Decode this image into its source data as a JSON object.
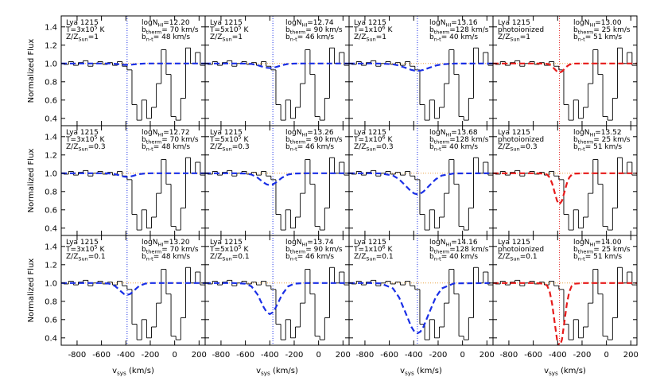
{
  "chart_data": {
    "type": "step",
    "x_label": [
      "v",
      "sys",
      " (km/s)"
    ],
    "y_label": "Normalized Flux",
    "xlim": [
      -930,
      250
    ],
    "xticks": [
      -800,
      -600,
      -400,
      -200,
      0,
      200
    ],
    "ylim": [
      0.32,
      1.52
    ],
    "yticks": [
      0.4,
      0.6,
      0.8,
      {
        "value": 1,
        "label": "1.0"
      },
      1.2,
      1.4
    ],
    "continuum": 1,
    "observed_color": "#000000",
    "bins": [
      -950,
      -910,
      -870,
      -830,
      -790,
      -750,
      -710,
      -670,
      -630,
      -590,
      -550,
      -510,
      -470,
      -430,
      -390,
      -350,
      -310,
      -270,
      -230,
      -190,
      -150,
      -110,
      -70,
      -30,
      10,
      50,
      90,
      130,
      170,
      210,
      250
    ],
    "observed": [
      1.0,
      0.99,
      1.02,
      0.98,
      1.01,
      1.03,
      0.97,
      1.0,
      1.02,
      0.99,
      1.01,
      0.98,
      1.02,
      0.97,
      0.93,
      0.55,
      0.38,
      0.6,
      0.4,
      0.52,
      0.78,
      1.15,
      0.88,
      0.42,
      0.38,
      0.62,
      1.17,
      1.0,
      1.12,
      0.98
    ],
    "panels": [
      {
        "ion": "Lya 1215",
        "temp": [
          "T=3x10",
          "5",
          " K"
        ],
        "metal": [
          "Z/Z",
          "Sun",
          "=1"
        ],
        "logN": [
          "logN",
          "HI",
          "=12.20"
        ],
        "b_therm": [
          "b",
          "therm",
          "= 70 km/s"
        ],
        "b_nt": [
          "b",
          "n-t",
          "= 48 km/s"
        ],
        "v_center": -390,
        "color": "#1a2fe6",
        "model_x": [
          -930,
          -690,
          -590,
          -540,
          -490,
          -465,
          -440,
          -415,
          -390,
          -365,
          -340,
          -315,
          -290,
          -240,
          -190,
          -90,
          250
        ],
        "model": [
          1,
          1,
          1,
          1,
          0.996,
          0.993,
          0.989,
          0.986,
          0.985,
          0.986,
          0.989,
          0.993,
          0.996,
          1,
          1,
          1,
          1
        ]
      },
      {
        "ion": "Lya 1215",
        "temp": [
          "T=5x10",
          "5",
          " K"
        ],
        "metal": [
          "Z/Z",
          "Sun",
          "=1"
        ],
        "logN": [
          "logN",
          "HI",
          "=12.74"
        ],
        "b_therm": [
          "b",
          "therm",
          "= 90 km/s"
        ],
        "b_nt": [
          "b",
          "n-t",
          "= 46 km/s"
        ],
        "v_center": -375,
        "color": "#1a2fe6",
        "model_x": [
          -930,
          -700,
          -600,
          -550,
          -500,
          -475,
          -450,
          -425,
          -400,
          -375,
          -350,
          -325,
          -300,
          -250,
          -200,
          -100,
          250
        ],
        "model": [
          1,
          1,
          0.999,
          0.995,
          0.981,
          0.971,
          0.961,
          0.953,
          0.95,
          0.953,
          0.961,
          0.971,
          0.981,
          0.995,
          0.999,
          1,
          1
        ]
      },
      {
        "ion": "Lya 1215",
        "temp": [
          "T=1x10",
          "6",
          " K"
        ],
        "metal": [
          "Z/Z",
          "Sun",
          "=1"
        ],
        "logN": [
          "logN",
          "HI",
          "=13.16"
        ],
        "b_therm": [
          "b",
          "therm",
          "=128 km/s"
        ],
        "b_nt": [
          "b",
          "n-t",
          "= 40 km/s"
        ],
        "v_center": -370,
        "color": "#1a2fe6",
        "model_x": [
          -930,
          -770,
          -670,
          -570,
          -520,
          -470,
          -420,
          -395,
          -370,
          -345,
          -320,
          -270,
          -220,
          -170,
          -70,
          250
        ],
        "model": [
          1,
          1,
          0.999,
          0.991,
          0.977,
          0.954,
          0.93,
          0.923,
          0.92,
          0.923,
          0.93,
          0.954,
          0.977,
          0.991,
          0.999,
          1
        ]
      },
      {
        "ion": "Lya 1215",
        "temp": "photoionized",
        "metal": [
          "Z/Z",
          "Sun",
          "=1"
        ],
        "logN": [
          "logN",
          "HI",
          "=13.00"
        ],
        "b_therm": [
          "b",
          "therm",
          "= 25 km/s"
        ],
        "b_nt": [
          "b",
          "n-t",
          "= 51 km/s"
        ],
        "v_center": -385,
        "color": "#e61a1a",
        "model_x": [
          -930,
          -585,
          -505,
          -485,
          -465,
          -445,
          -425,
          -405,
          -385,
          -365,
          -345,
          -325,
          -305,
          -285,
          -265,
          -185,
          250
        ],
        "model": [
          1,
          1,
          0.999,
          0.995,
          0.986,
          0.967,
          0.939,
          0.912,
          0.9,
          0.912,
          0.939,
          0.967,
          0.986,
          0.995,
          0.999,
          1,
          1
        ]
      },
      {
        "ion": "Lya 1215",
        "temp": [
          "T=3x10",
          "5",
          " K"
        ],
        "metal": [
          "Z/Z",
          "Sun",
          "=0.3"
        ],
        "logN": [
          "logN",
          "HI",
          "=12.72"
        ],
        "b_therm": [
          "b",
          "therm",
          "= 70 km/s"
        ],
        "b_nt": [
          "b",
          "n-t",
          "= 48 km/s"
        ],
        "v_center": -390,
        "color": "#1a2fe6",
        "model_x": [
          -930,
          -690,
          -590,
          -540,
          -490,
          -465,
          -440,
          -415,
          -390,
          -365,
          -340,
          -315,
          -290,
          -240,
          -190,
          -90,
          250
        ],
        "model": [
          1,
          1,
          1,
          0.998,
          0.99,
          0.982,
          0.972,
          0.963,
          0.96,
          0.963,
          0.972,
          0.982,
          0.99,
          0.998,
          1,
          1,
          1
        ]
      },
      {
        "ion": "Lya 1215",
        "temp": [
          "T=5x10",
          "5",
          " K"
        ],
        "metal": [
          "Z/Z",
          "Sun",
          "=0.3"
        ],
        "logN": [
          "logN",
          "HI",
          "=13.26"
        ],
        "b_therm": [
          "b",
          "therm",
          "= 90 km/s"
        ],
        "b_nt": [
          "b",
          "n-t",
          "= 46 km/s"
        ],
        "v_center": -375,
        "color": "#1a2fe6",
        "model_x": [
          -930,
          -700,
          -600,
          -550,
          -500,
          -475,
          -450,
          -425,
          -400,
          -375,
          -350,
          -325,
          -300,
          -250,
          -200,
          -100,
          250
        ],
        "model": [
          1,
          1,
          0.997,
          0.986,
          0.951,
          0.925,
          0.899,
          0.878,
          0.87,
          0.878,
          0.899,
          0.925,
          0.951,
          0.986,
          0.997,
          1,
          1
        ]
      },
      {
        "ion": "Lya 1215",
        "temp": [
          "T=1x10",
          "6",
          " K"
        ],
        "metal": [
          "Z/Z",
          "Sun",
          "=0.3"
        ],
        "logN": [
          "logN",
          "HI",
          "=13.68"
        ],
        "b_therm": [
          "b",
          "therm",
          "=128 km/s"
        ],
        "b_nt": [
          "b",
          "n-t",
          "= 40 km/s"
        ],
        "v_center": -370,
        "color": "#1a2fe6",
        "model_x": [
          -930,
          -770,
          -670,
          -570,
          -520,
          -470,
          -420,
          -395,
          -370,
          -345,
          -320,
          -270,
          -220,
          -170,
          -70,
          250
        ],
        "model": [
          1,
          1,
          0.998,
          0.975,
          0.934,
          0.868,
          0.8,
          0.778,
          0.77,
          0.778,
          0.8,
          0.868,
          0.934,
          0.975,
          0.998,
          1
        ]
      },
      {
        "ion": "Lya 1215",
        "temp": "photoionized",
        "metal": [
          "Z/Z",
          "Sun",
          "=0.3"
        ],
        "logN": [
          "logN",
          "HI",
          "=13.52"
        ],
        "b_therm": [
          "b",
          "therm",
          "= 25 km/s"
        ],
        "b_nt": [
          "b",
          "n-t",
          "= 51 km/s"
        ],
        "v_center": -385,
        "color": "#e61a1a",
        "model_x": [
          -930,
          -585,
          -505,
          -485,
          -465,
          -445,
          -425,
          -405,
          -385,
          -365,
          -345,
          -325,
          -305,
          -285,
          -265,
          -185,
          250
        ],
        "model": [
          1,
          1,
          0.996,
          0.984,
          0.953,
          0.888,
          0.792,
          0.699,
          0.66,
          0.699,
          0.792,
          0.888,
          0.953,
          0.984,
          0.996,
          1,
          1
        ]
      },
      {
        "ion": "Lya 1215",
        "temp": [
          "T=3x10",
          "5",
          " K"
        ],
        "metal": [
          "Z/Z",
          "Sun",
          "=0.1"
        ],
        "logN": [
          "logN",
          "HI",
          "=13.20"
        ],
        "b_therm": [
          "b",
          "therm",
          "= 70 km/s"
        ],
        "b_nt": [
          "b",
          "n-t",
          "= 48 km/s"
        ],
        "v_center": -390,
        "color": "#1a2fe6",
        "model_x": [
          -930,
          -690,
          -590,
          -540,
          -490,
          -465,
          -440,
          -415,
          -390,
          -365,
          -340,
          -315,
          -290,
          -240,
          -190,
          -90,
          250
        ],
        "model": [
          1,
          1,
          1,
          0.994,
          0.968,
          0.94,
          0.908,
          0.88,
          0.87,
          0.88,
          0.908,
          0.94,
          0.968,
          0.994,
          1,
          1,
          1
        ]
      },
      {
        "ion": "Lya 1215",
        "temp": [
          "T=5x10",
          "5",
          " K"
        ],
        "metal": [
          "Z/Z",
          "Sun",
          "=0.1"
        ],
        "logN": [
          "logN",
          "HI",
          "=13.74"
        ],
        "b_therm": [
          "b",
          "therm",
          "= 90 km/s"
        ],
        "b_nt": [
          "b",
          "n-t",
          "= 46 km/s"
        ],
        "v_center": -375,
        "color": "#1a2fe6",
        "model_x": [
          -930,
          -700,
          -600,
          -550,
          -500,
          -475,
          -450,
          -425,
          -400,
          -375,
          -350,
          -325,
          -300,
          -250,
          -200,
          -100,
          250
        ],
        "model": [
          1,
          1,
          0.993,
          0.963,
          0.873,
          0.803,
          0.735,
          0.68,
          0.66,
          0.68,
          0.735,
          0.803,
          0.873,
          0.963,
          0.993,
          1,
          1
        ]
      },
      {
        "ion": "Lya 1215",
        "temp": [
          "T=1x10",
          "6",
          " K"
        ],
        "metal": [
          "Z/Z",
          "Sun",
          "=0.1"
        ],
        "logN": [
          "logN",
          "HI",
          "=14.16"
        ],
        "b_therm": [
          "b",
          "therm",
          "=128 km/s"
        ],
        "b_nt": [
          "b",
          "n-t",
          "= 40 km/s"
        ],
        "v_center": -370,
        "color": "#1a2fe6",
        "model_x": [
          -930,
          -770,
          -670,
          -570,
          -520,
          -470,
          -420,
          -395,
          -370,
          -345,
          -320,
          -270,
          -220,
          -170,
          -70,
          250
        ],
        "model": [
          1,
          1,
          0.996,
          0.941,
          0.843,
          0.685,
          0.522,
          0.469,
          0.45,
          0.469,
          0.522,
          0.685,
          0.843,
          0.941,
          0.996,
          1
        ]
      },
      {
        "ion": "Lya 1215",
        "temp": "photoionized",
        "metal": [
          "Z/Z",
          "Sun",
          "=0.1"
        ],
        "logN": [
          "logN",
          "HI",
          "=14.00"
        ],
        "b_therm": [
          "b",
          "therm",
          "= 25 km/s"
        ],
        "b_nt": [
          "b",
          "n-t",
          "= 51 km/s"
        ],
        "v_center": -385,
        "color": "#e61a1a",
        "model_x": [
          -930,
          -585,
          -505,
          -485,
          -465,
          -445,
          -425,
          -405,
          -385,
          -365,
          -345,
          -325,
          -305,
          -285,
          -265,
          -185,
          250
        ],
        "model": [
          1,
          1,
          0.992,
          0.968,
          0.903,
          0.769,
          0.572,
          0.381,
          0.3,
          0.381,
          0.572,
          0.769,
          0.903,
          0.968,
          0.992,
          1,
          1
        ]
      }
    ]
  }
}
